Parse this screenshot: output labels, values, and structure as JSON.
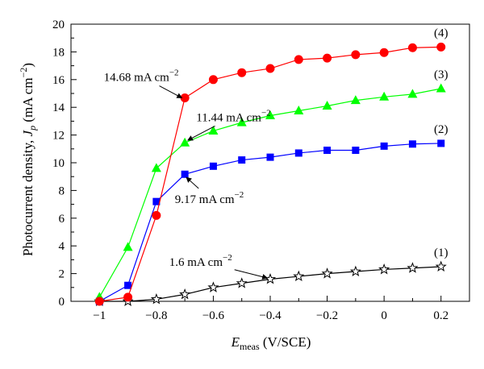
{
  "chart_data": {
    "type": "line",
    "xlabel": {
      "main": "E",
      "sub": "meas",
      "rest": " (V/SCE)"
    },
    "ylabel": {
      "pre": "Photocurrent density, ",
      "main": "J",
      "sub": "p",
      "rest": " (mA cm",
      "sup": "−2",
      "close": ")"
    },
    "xlim": [
      -1.1,
      0.3
    ],
    "ylim": [
      0,
      20
    ],
    "xticks": [
      -1,
      -0.8,
      -0.6,
      -0.4,
      -0.2,
      0,
      0.2
    ],
    "xtick_labels": [
      "−1",
      "−0.8",
      "−0.6",
      "−0.4",
      "−0.2",
      "0",
      "0.2"
    ],
    "yticks": [
      0,
      2,
      4,
      6,
      8,
      10,
      12,
      14,
      16,
      18,
      20
    ],
    "ytick_labels": [
      "0",
      "2",
      "4",
      "6",
      "8",
      "10",
      "12",
      "14",
      "16",
      "18",
      "20"
    ],
    "grid": false,
    "x": [
      -1.0,
      -0.9,
      -0.8,
      -0.7,
      -0.6,
      -0.5,
      -0.4,
      -0.3,
      -0.2,
      -0.1,
      0.0,
      0.1,
      0.2
    ],
    "series": [
      {
        "label": "(1)",
        "marker": "star",
        "color": "#000000",
        "values": [
          0.0,
          0.0,
          0.15,
          0.5,
          1.0,
          1.3,
          1.6,
          1.8,
          2.0,
          2.15,
          2.3,
          2.4,
          2.5
        ]
      },
      {
        "label": "(2)",
        "marker": "square",
        "color": "#0000ff",
        "values": [
          0.0,
          1.15,
          7.2,
          9.17,
          9.75,
          10.2,
          10.4,
          10.7,
          10.9,
          10.9,
          11.2,
          11.35,
          11.4
        ]
      },
      {
        "label": "(3)",
        "marker": "triangle",
        "color": "#00ff00",
        "values": [
          0.3,
          3.9,
          9.6,
          11.44,
          12.3,
          12.9,
          13.4,
          13.75,
          14.1,
          14.5,
          14.75,
          14.95,
          15.35
        ]
      },
      {
        "label": "(4)",
        "marker": "circle",
        "color": "#ff0000",
        "values": [
          0.0,
          0.3,
          6.2,
          14.68,
          16.0,
          16.5,
          16.8,
          17.45,
          17.55,
          17.8,
          17.95,
          18.3,
          18.35
        ]
      }
    ],
    "annotations": [
      {
        "value": "14.68",
        "unit": " mA cm",
        "sup": "−2",
        "text_x": -0.985,
        "text_y": 15.9,
        "arrow_to": [
          -0.71,
          14.68
        ]
      },
      {
        "value": "11.44",
        "unit": " mA cm",
        "sup": "−2",
        "text_x": -0.66,
        "text_y": 13.0,
        "arrow_to": [
          -0.69,
          11.62
        ]
      },
      {
        "value": "9.17",
        "unit": " mA cm",
        "sup": "−2",
        "text_x": -0.735,
        "text_y": 7.1,
        "arrow_to": [
          -0.695,
          8.95
        ]
      },
      {
        "value": "1.6",
        "unit": " mA cm",
        "sup": "−2",
        "text_x": -0.755,
        "text_y": 2.55,
        "arrow_to": [
          -0.41,
          1.68
        ]
      }
    ]
  }
}
